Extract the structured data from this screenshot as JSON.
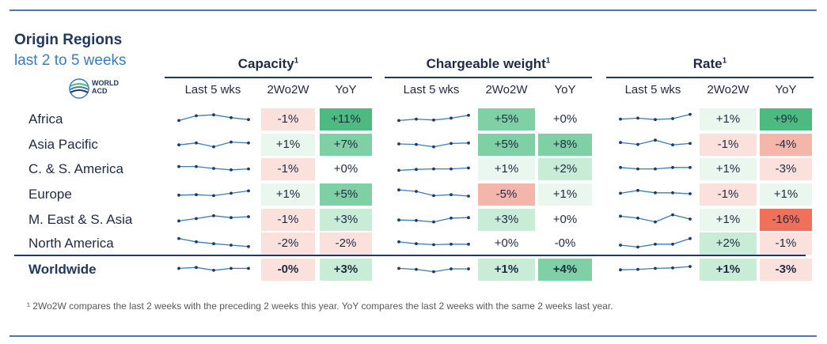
{
  "title": "Origin Regions",
  "subtitle": "last 2 to 5 weeks",
  "logo": {
    "line1": "WORLD",
    "line2": "ACD"
  },
  "footnote": "¹ 2Wo2W compares the last 2 weeks with the preceding 2 weeks this year. YoY compares the last 2 weeks with the same 2 weeks last year.",
  "colors": {
    "pos_strong": "#4dbb80",
    "pos_mid": "#7fd0a4",
    "pos_light": "#c9ecd7",
    "pos_faint": "#eaf7ef",
    "neg_strong": "#f0705a",
    "neg_mid": "#f4b5aa",
    "neg_light": "#fbe1dc",
    "neutral": "#ffffff",
    "spark": "#3a7cc1"
  },
  "chart_data": {
    "type": "table",
    "column_headers": [
      "Last 5 wks",
      "2Wo2W",
      "YoY"
    ],
    "groups": [
      {
        "title": "Capacity",
        "sup": "1"
      },
      {
        "title": "Chargeable weight",
        "sup": "1"
      },
      {
        "title": "Rate",
        "sup": "1"
      }
    ],
    "rows": [
      {
        "region": "Africa",
        "capacity": {
          "spark": [
            0.3,
            0.8,
            0.9,
            0.6,
            0.4
          ],
          "w2": "-1%",
          "yoy": "+11%"
        },
        "chargeable": {
          "spark": [
            0.3,
            0.45,
            0.35,
            0.55,
            0.85
          ],
          "w2": "+5%",
          "yoy": "+0%"
        },
        "rate": {
          "spark": [
            0.45,
            0.55,
            0.4,
            0.5,
            0.95
          ],
          "w2": "+1%",
          "yoy": "+9%"
        }
      },
      {
        "region": "Asia Pacific",
        "capacity": {
          "spark": [
            0.4,
            0.6,
            0.2,
            0.7,
            0.6
          ],
          "w2": "+1%",
          "yoy": "+7%"
        },
        "chargeable": {
          "spark": [
            0.5,
            0.45,
            0.2,
            0.55,
            0.6
          ],
          "w2": "+5%",
          "yoy": "+8%"
        },
        "rate": {
          "spark": [
            0.65,
            0.45,
            0.9,
            0.4,
            0.55
          ],
          "w2": "-1%",
          "yoy": "-4%"
        }
      },
      {
        "region": "C. & S. America",
        "capacity": {
          "spark": [
            0.7,
            0.7,
            0.5,
            0.35,
            0.45
          ],
          "w2": "-1%",
          "yoy": "+0%"
        },
        "chargeable": {
          "spark": [
            0.3,
            0.4,
            0.45,
            0.45,
            0.55
          ],
          "w2": "+1%",
          "yoy": "+2%"
        },
        "rate": {
          "spark": [
            0.6,
            0.45,
            0.45,
            0.6,
            0.6
          ],
          "w2": "+1%",
          "yoy": "-3%"
        }
      },
      {
        "region": "Europe",
        "capacity": {
          "spark": [
            0.35,
            0.4,
            0.3,
            0.55,
            0.8
          ],
          "w2": "+1%",
          "yoy": "+5%"
        },
        "chargeable": {
          "spark": [
            0.9,
            0.75,
            0.3,
            0.4,
            0.25
          ],
          "w2": "-5%",
          "yoy": "+1%"
        },
        "rate": {
          "spark": [
            0.55,
            0.85,
            0.6,
            0.6,
            0.5
          ],
          "w2": "-1%",
          "yoy": "+1%"
        }
      },
      {
        "region": "M. East & S. Asia",
        "capacity": {
          "spark": [
            0.3,
            0.55,
            0.85,
            0.65,
            0.75
          ],
          "w2": "-1%",
          "yoy": "+3%"
        },
        "chargeable": {
          "spark": [
            0.4,
            0.35,
            0.2,
            0.6,
            0.65
          ],
          "w2": "+3%",
          "yoy": "+0%"
        },
        "rate": {
          "spark": [
            0.8,
            0.6,
            0.2,
            0.95,
            0.5
          ],
          "w2": "+1%",
          "yoy": "-16%"
        }
      },
      {
        "region": "North America",
        "capacity": {
          "spark": [
            0.95,
            0.6,
            0.4,
            0.25,
            0.1
          ],
          "w2": "-2%",
          "yoy": "-2%"
        },
        "chargeable": {
          "spark": [
            0.6,
            0.4,
            0.3,
            0.35,
            0.35
          ],
          "w2": "+0%",
          "yoy": "-0%"
        },
        "rate": {
          "spark": [
            0.25,
            0.05,
            0.35,
            0.35,
            0.95
          ],
          "w2": "+2%",
          "yoy": "-1%"
        }
      },
      {
        "region": "Worldwide",
        "capacity": {
          "spark": [
            0.55,
            0.65,
            0.35,
            0.55,
            0.55
          ],
          "w2": "-0%",
          "yoy": "+3%"
        },
        "chargeable": {
          "spark": [
            0.55,
            0.45,
            0.2,
            0.5,
            0.5
          ],
          "w2": "+1%",
          "yoy": "+4%"
        },
        "rate": {
          "spark": [
            0.4,
            0.45,
            0.55,
            0.6,
            0.75
          ],
          "w2": "+1%",
          "yoy": "-3%"
        }
      }
    ],
    "cell_shade": {
      "capacity": [
        [
          "neg_light",
          "pos_strong"
        ],
        [
          "pos_faint",
          "pos_mid"
        ],
        [
          "neg_light",
          "neutral"
        ],
        [
          "pos_faint",
          "pos_mid"
        ],
        [
          "neg_light",
          "pos_light"
        ],
        [
          "neg_light",
          "neg_light"
        ],
        [
          "neg_light",
          "pos_light"
        ]
      ],
      "chargeable": [
        [
          "pos_mid",
          "neutral"
        ],
        [
          "pos_mid",
          "pos_mid"
        ],
        [
          "pos_faint",
          "pos_light"
        ],
        [
          "neg_mid",
          "pos_faint"
        ],
        [
          "pos_light",
          "neutral"
        ],
        [
          "neutral",
          "neutral"
        ],
        [
          "pos_light",
          "pos_mid"
        ]
      ],
      "rate": [
        [
          "pos_faint",
          "pos_strong"
        ],
        [
          "neg_light",
          "neg_mid"
        ],
        [
          "pos_faint",
          "neg_light"
        ],
        [
          "neg_light",
          "pos_faint"
        ],
        [
          "pos_faint",
          "neg_strong"
        ],
        [
          "pos_light",
          "neg_light"
        ],
        [
          "pos_light",
          "neg_light"
        ]
      ]
    }
  }
}
